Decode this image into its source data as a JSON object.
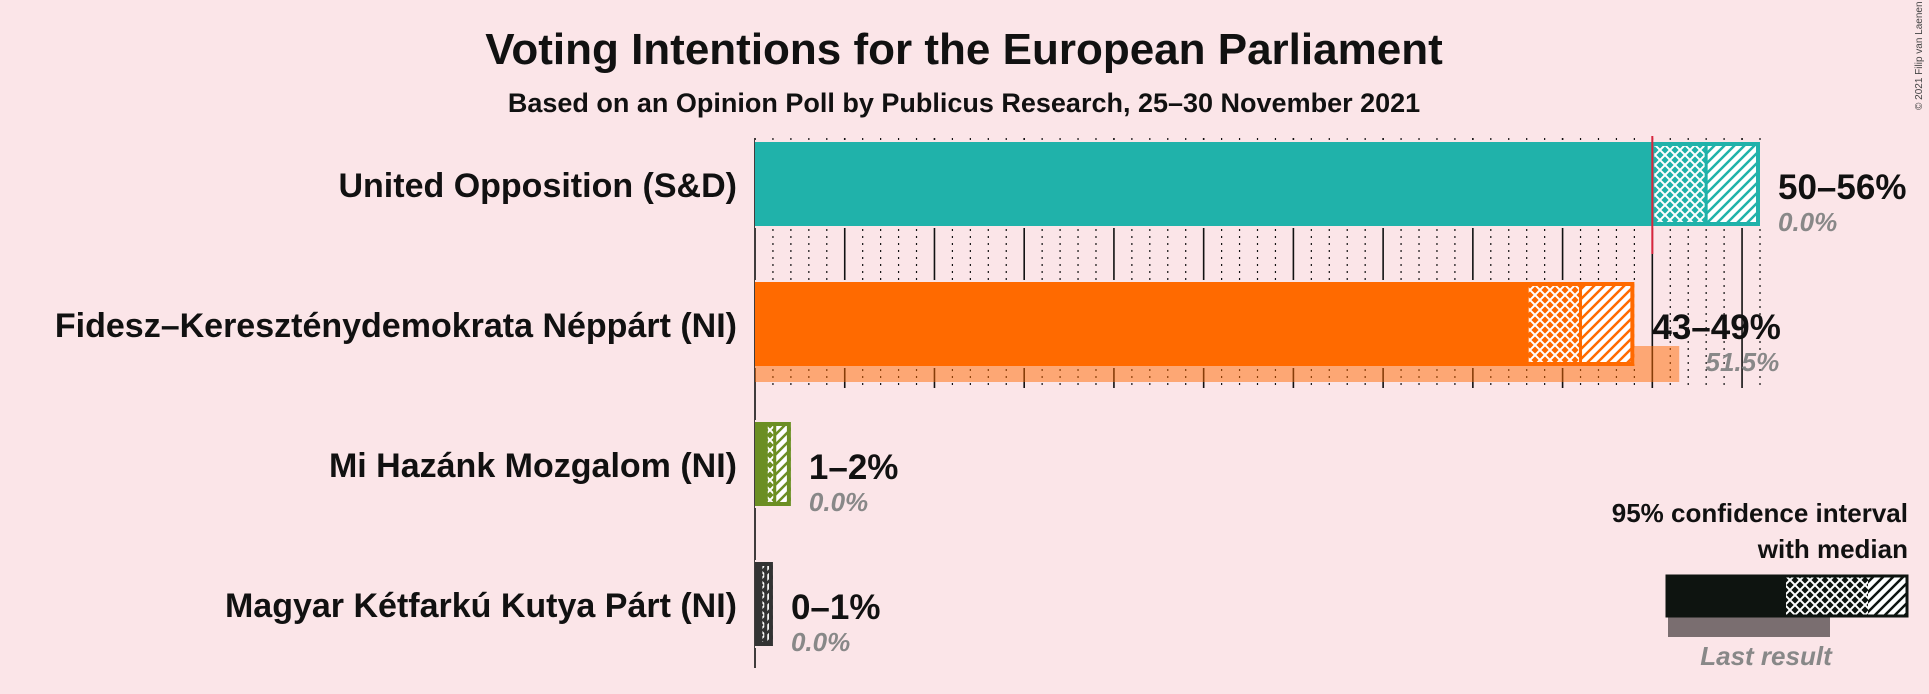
{
  "title": "Voting Intentions for the European Parliament",
  "subtitle": "Based on an Opinion Poll by Publicus Research, 25–30 November 2021",
  "copyright": "© 2021 Filip van Laenen",
  "legend": {
    "ci_line1": "95% confidence interval",
    "ci_line2": "with median",
    "last_result": "Last result"
  },
  "chart_data": {
    "type": "bar",
    "orientation": "horizontal",
    "title": "Voting Intentions for the European Parliament",
    "subtitle": "Based on an Opinion Poll by Publicus Research, 25–30 November 2021",
    "xlim": [
      0,
      56
    ],
    "majority_line": 50,
    "series": [
      {
        "party": "United Opposition (S&D)",
        "color": "#20B2AA",
        "ci_low": 50,
        "median": 53,
        "ci_high": 56,
        "range_label": "50–56%",
        "last_result": 0.0,
        "last_label": "0.0%"
      },
      {
        "party": "Fidesz–Kereszténydemokrata Néppárt (NI)",
        "color": "#FF6A00",
        "ci_low": 43,
        "median": 46,
        "ci_high": 49,
        "range_label": "43–49%",
        "last_result": 51.5,
        "last_label": "51.5%"
      },
      {
        "party": "Mi Hazánk Mozgalom (NI)",
        "color": "#6B8E23",
        "ci_low": 0.6,
        "median": 1.1,
        "ci_high": 2.0,
        "range_label": "1–2%",
        "last_result": 0.0,
        "last_label": "0.0%"
      },
      {
        "party": "Magyar Kétfarkú Kutya Párt (NI)",
        "color": "#333333",
        "ci_low": 0.3,
        "median": 0.6,
        "ci_high": 1.0,
        "range_label": "0–1%",
        "last_result": 0.0,
        "last_label": "0.0%"
      }
    ]
  }
}
